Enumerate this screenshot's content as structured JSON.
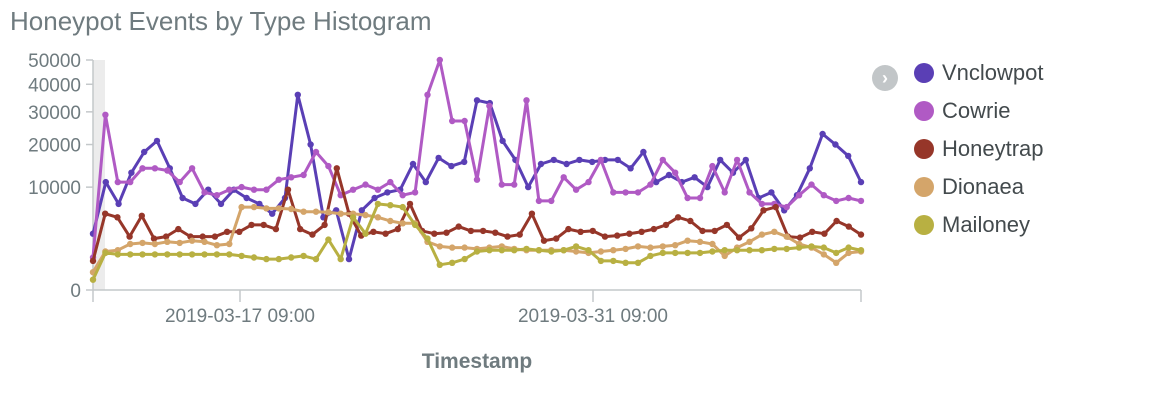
{
  "title": "Honeypot Events by Type Histogram",
  "legend_toggle_icon": "chevron-right-icon",
  "chart_data": {
    "type": "line",
    "title": "Honeypot Events by Type Histogram",
    "xlabel": "Timestamp",
    "ylabel": "",
    "x_tick_labels": [
      "2019-03-17 09:00",
      "2019-03-31 09:00"
    ],
    "y_tick_labels": [
      "0",
      "10000",
      "20000",
      "30000",
      "40000",
      "50000"
    ],
    "y_scale": "sqrt",
    "ylim": [
      0,
      50000
    ],
    "legend_position": "right",
    "series": [
      {
        "name": "Vnclowpot",
        "color": "#5a3fb5",
        "values": [
          3000,
          11000,
          7000,
          13000,
          18000,
          21000,
          14000,
          8000,
          7000,
          9500,
          7000,
          9500,
          8000,
          7000,
          5500,
          8000,
          36000,
          20000,
          5000,
          6000,
          900,
          6000,
          8000,
          9000,
          9500,
          15000,
          11000,
          16500,
          14500,
          15500,
          34000,
          33000,
          21000,
          16000,
          10000,
          15000,
          16000,
          15000,
          16000,
          15500,
          16000,
          16000,
          14000,
          18000,
          11000,
          12500,
          11000,
          12000,
          10000,
          16000,
          13000,
          16000,
          8000,
          9000,
          6000,
          8500,
          14000,
          23000,
          20000,
          17000,
          11000
        ]
      },
      {
        "name": "Cowrie",
        "color": "#b05ac4",
        "values": [
          1000,
          29000,
          11000,
          11000,
          14000,
          14000,
          13500,
          11000,
          14000,
          9000,
          8500,
          9500,
          10000,
          9500,
          9500,
          11500,
          12000,
          12500,
          18000,
          14500,
          8500,
          9500,
          10500,
          9500,
          11000,
          8500,
          9000,
          36000,
          50000,
          27000,
          27000,
          11500,
          32000,
          10500,
          10500,
          34000,
          7500,
          7500,
          12000,
          9500,
          11000,
          16000,
          9000,
          9000,
          9000,
          10500,
          16000,
          13000,
          8000,
          8000,
          14500,
          9000,
          16000,
          9000,
          7000,
          7000,
          6500,
          8500,
          10500,
          8500,
          7500,
          8000,
          7500
        ]
      },
      {
        "name": "Honeytrap",
        "color": "#963629",
        "values": [
          800,
          5500,
          5000,
          2700,
          5200,
          2500,
          2700,
          3500,
          2700,
          2700,
          2700,
          3200,
          3200,
          4000,
          4000,
          3500,
          9500,
          3500,
          2900,
          4000,
          14000,
          5500,
          2800,
          3200,
          3000,
          3500,
          7000,
          3300,
          3000,
          3100,
          3800,
          3300,
          3300,
          3100,
          2700,
          2900,
          5500,
          2300,
          2500,
          3500,
          3200,
          3300,
          2700,
          2800,
          3000,
          3200,
          3500,
          4000,
          5000,
          4500,
          3300,
          3300,
          4000,
          2600,
          3600,
          6000,
          6500,
          2700,
          2600,
          3200,
          3000,
          4500,
          3800,
          2900
        ]
      },
      {
        "name": "Dionaea",
        "color": "#d4a56a",
        "values": [
          300,
          1400,
          1500,
          2000,
          2100,
          2000,
          2200,
          2100,
          2300,
          2200,
          1900,
          2000,
          6500,
          6500,
          6300,
          6300,
          6200,
          5800,
          5800,
          5700,
          5500,
          5500,
          5300,
          5000,
          4500,
          4200,
          4200,
          2200,
          1800,
          1700,
          1700,
          1600,
          1700,
          1800,
          1600,
          1500,
          1500,
          1500,
          1500,
          1400,
          1300,
          1400,
          1500,
          1600,
          1800,
          1700,
          1800,
          1900,
          2300,
          2200,
          2000,
          1100,
          1700,
          2200,
          2900,
          3200,
          2700,
          2000,
          1700,
          1200,
          700,
          1300,
          1400
        ]
      },
      {
        "name": "Mailoney",
        "color": "#b8b042",
        "values": [
          100,
          1300,
          1200,
          1200,
          1200,
          1200,
          1200,
          1200,
          1200,
          1200,
          1200,
          1200,
          1100,
          1000,
          900,
          900,
          1000,
          1100,
          900,
          2400,
          900,
          5000,
          3000,
          7000,
          6800,
          6500,
          4000,
          2500,
          600,
          700,
          900,
          1400,
          1500,
          1500,
          1500,
          1600,
          1500,
          1400,
          1500,
          1800,
          1500,
          800,
          800,
          700,
          700,
          1100,
          1300,
          1300,
          1300,
          1300,
          1400,
          1500,
          1500,
          1500,
          1500,
          1600,
          1600,
          1700,
          1800,
          1700,
          1300,
          1700,
          1500
        ]
      }
    ]
  }
}
